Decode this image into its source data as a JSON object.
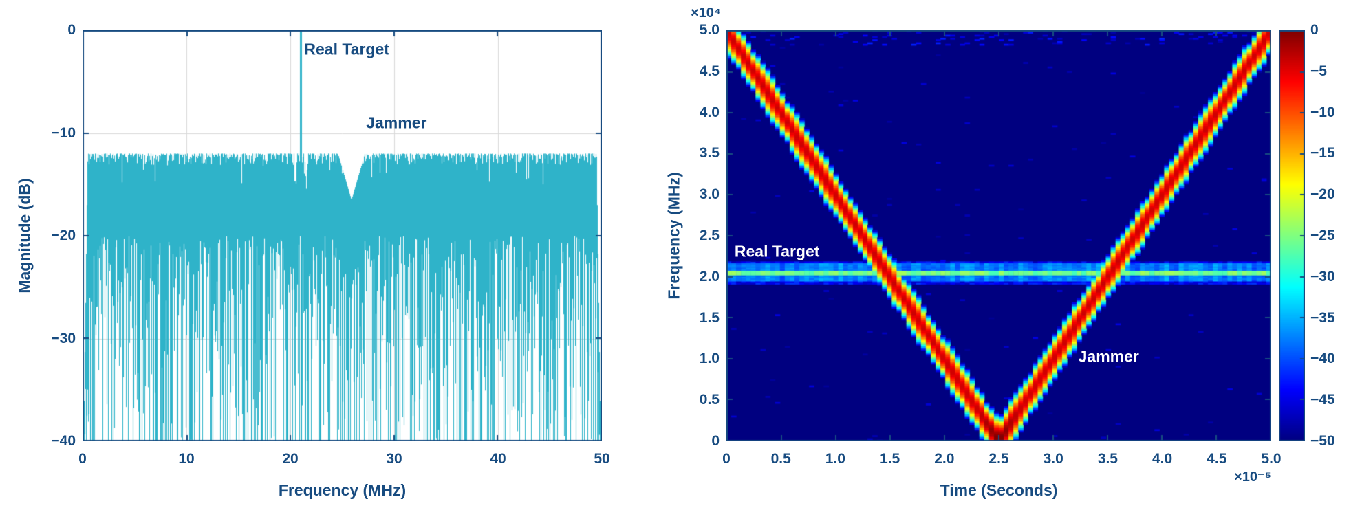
{
  "figure": {
    "background": "#ffffff",
    "axis_color": "#174b80",
    "grid_color": "#d9d9d9"
  },
  "chart_data": [
    {
      "id": "jammer-spectrum",
      "type": "line",
      "title": "",
      "xlabel": "Frequency (MHz)",
      "ylabel": "Magnitude (dB)",
      "xlim": [
        0,
        50
      ],
      "ylim": [
        -40,
        0
      ],
      "xtick_labels": [
        "0",
        "10",
        "20",
        "30",
        "40",
        "50"
      ],
      "ytick_labels": [
        "0",
        "−10",
        "−20",
        "−30",
        "−40"
      ],
      "grid": true,
      "line_color": "#2fb3c9",
      "series": {
        "name": "jammer-plus-target-spectrum",
        "flat_top_db": -12,
        "deep_null_min_db": -44,
        "notch": {
          "center_mhz": 25.9,
          "half_width_mhz": 1.3,
          "bottom_db": -16.5
        },
        "real_target_spike": {
          "freq_mhz": 21,
          "peak_db": 0
        },
        "edge_taper_mhz": 0.5
      },
      "annotations": [
        {
          "text": "Real Target",
          "x_mhz": 21.35,
          "y_db": -1.9,
          "color": "#174b80",
          "align": "left"
        },
        {
          "text": "Jammer",
          "x_mhz": 27.3,
          "y_db": -9.0,
          "color": "#174b80",
          "align": "left"
        }
      ]
    },
    {
      "id": "jammer-spectrogram",
      "type": "heatmap",
      "title": "",
      "xlabel": "Time (Seconds)",
      "ylabel": "Frequency (MHz)",
      "x_exponent": "×10⁻⁵",
      "y_exponent": "×10⁴",
      "xlim_seconds": [
        0,
        5e-05
      ],
      "ylim_freq": [
        0,
        50000
      ],
      "xtick_labels": [
        "0",
        "0.5",
        "1.0",
        "1.5",
        "2.0",
        "2.5",
        "3.0",
        "3.5",
        "4.0",
        "4.5",
        "5.0"
      ],
      "ytick_labels": [
        "0",
        "0.5",
        "1.0",
        "1.5",
        "2.0",
        "2.5",
        "3.0",
        "3.5",
        "4.0",
        "4.5",
        "5.0"
      ],
      "colormap": "jet",
      "color_limits_db": [
        -50,
        0
      ],
      "colorbar_tick_labels": [
        "0",
        "−5",
        "−10",
        "−15",
        "−20",
        "−25",
        "−30",
        "−35",
        "−40",
        "−45",
        "−50"
      ],
      "background_db": -50,
      "jammer_chirp": {
        "vertices_time_freq": [
          [
            0,
            50000
          ],
          [
            2.5e-05,
            0
          ],
          [
            5e-05,
            50000
          ]
        ],
        "gaussian_halfwidth": 3000,
        "peak_db": -4,
        "turn_boost_db": 4
      },
      "real_target_line": {
        "frequency": 20500,
        "core_db": -22,
        "band_db": -33,
        "core_halfwidth": 260,
        "band_halfwidth": 1100
      },
      "annotations": [
        {
          "text": "Real Target",
          "t": 7.5e-07,
          "f": 23100,
          "color": "#ffffff",
          "align": "left"
        },
        {
          "text": "Jammer",
          "t": 3.23e-05,
          "f": 10300,
          "color": "#ffffff",
          "align": "left"
        }
      ]
    }
  ]
}
